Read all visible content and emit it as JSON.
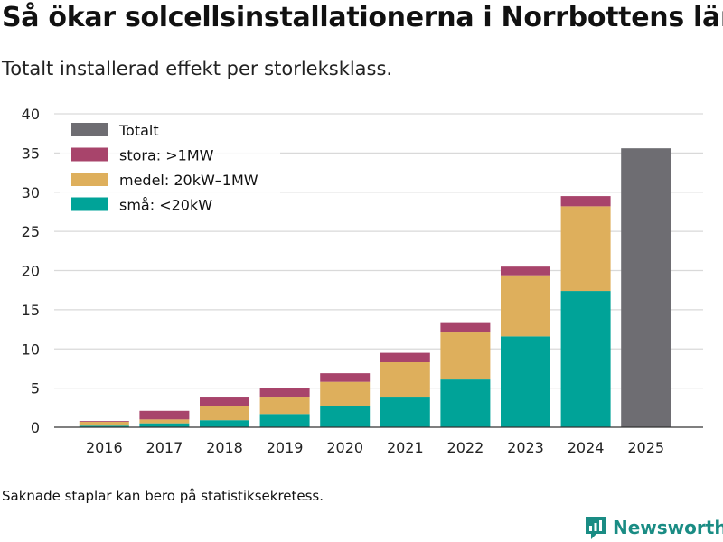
{
  "title": "Så ökar solcellsinstallationerna i Norrbottens län",
  "subtitle": "Totalt installerad effekt per storleksklass.",
  "note": "Saknade staplar kan bero på statistiksekretess.",
  "brand": "Newsworthy",
  "colors": {
    "sma": "#00a398",
    "medel": "#deaf5c",
    "stora": "#a8446b",
    "totalt": "#6e6d72",
    "grid": "#d9d9d9",
    "brand": "#1a8c84"
  },
  "chart_data": {
    "type": "bar",
    "stacked": true,
    "categories": [
      "2016",
      "2017",
      "2018",
      "2019",
      "2020",
      "2021",
      "2022",
      "2023",
      "2024",
      "2025"
    ],
    "series": [
      {
        "name": "små: <20kW",
        "key": "sma",
        "values": [
          0.2,
          0.5,
          0.9,
          1.7,
          2.7,
          3.8,
          6.1,
          11.6,
          17.4,
          0
        ]
      },
      {
        "name": "medel: 20kW–1MW",
        "key": "medel",
        "values": [
          0.5,
          0.5,
          1.8,
          2.1,
          3.1,
          4.5,
          6.0,
          7.8,
          10.8,
          0
        ]
      },
      {
        "name": "stora: >1MW",
        "key": "stora",
        "values": [
          0.1,
          1.1,
          1.1,
          1.2,
          1.1,
          1.2,
          1.2,
          1.1,
          1.3,
          0
        ]
      },
      {
        "name": "Totalt",
        "key": "totalt",
        "values": [
          0,
          0,
          0,
          0,
          0,
          0,
          0,
          0,
          0,
          35.6
        ]
      }
    ],
    "legend": [
      "Totalt",
      "stora: >1MW",
      "medel: 20kW–1MW",
      "små: <20kW"
    ],
    "legend_keys": [
      "totalt",
      "stora",
      "medel",
      "sma"
    ],
    "legend_position": "top-left",
    "ylim": [
      0,
      40
    ],
    "yticks": [
      0,
      5,
      10,
      15,
      20,
      25,
      30,
      35,
      40
    ],
    "xlabel": "",
    "ylabel": "",
    "grid": true
  }
}
